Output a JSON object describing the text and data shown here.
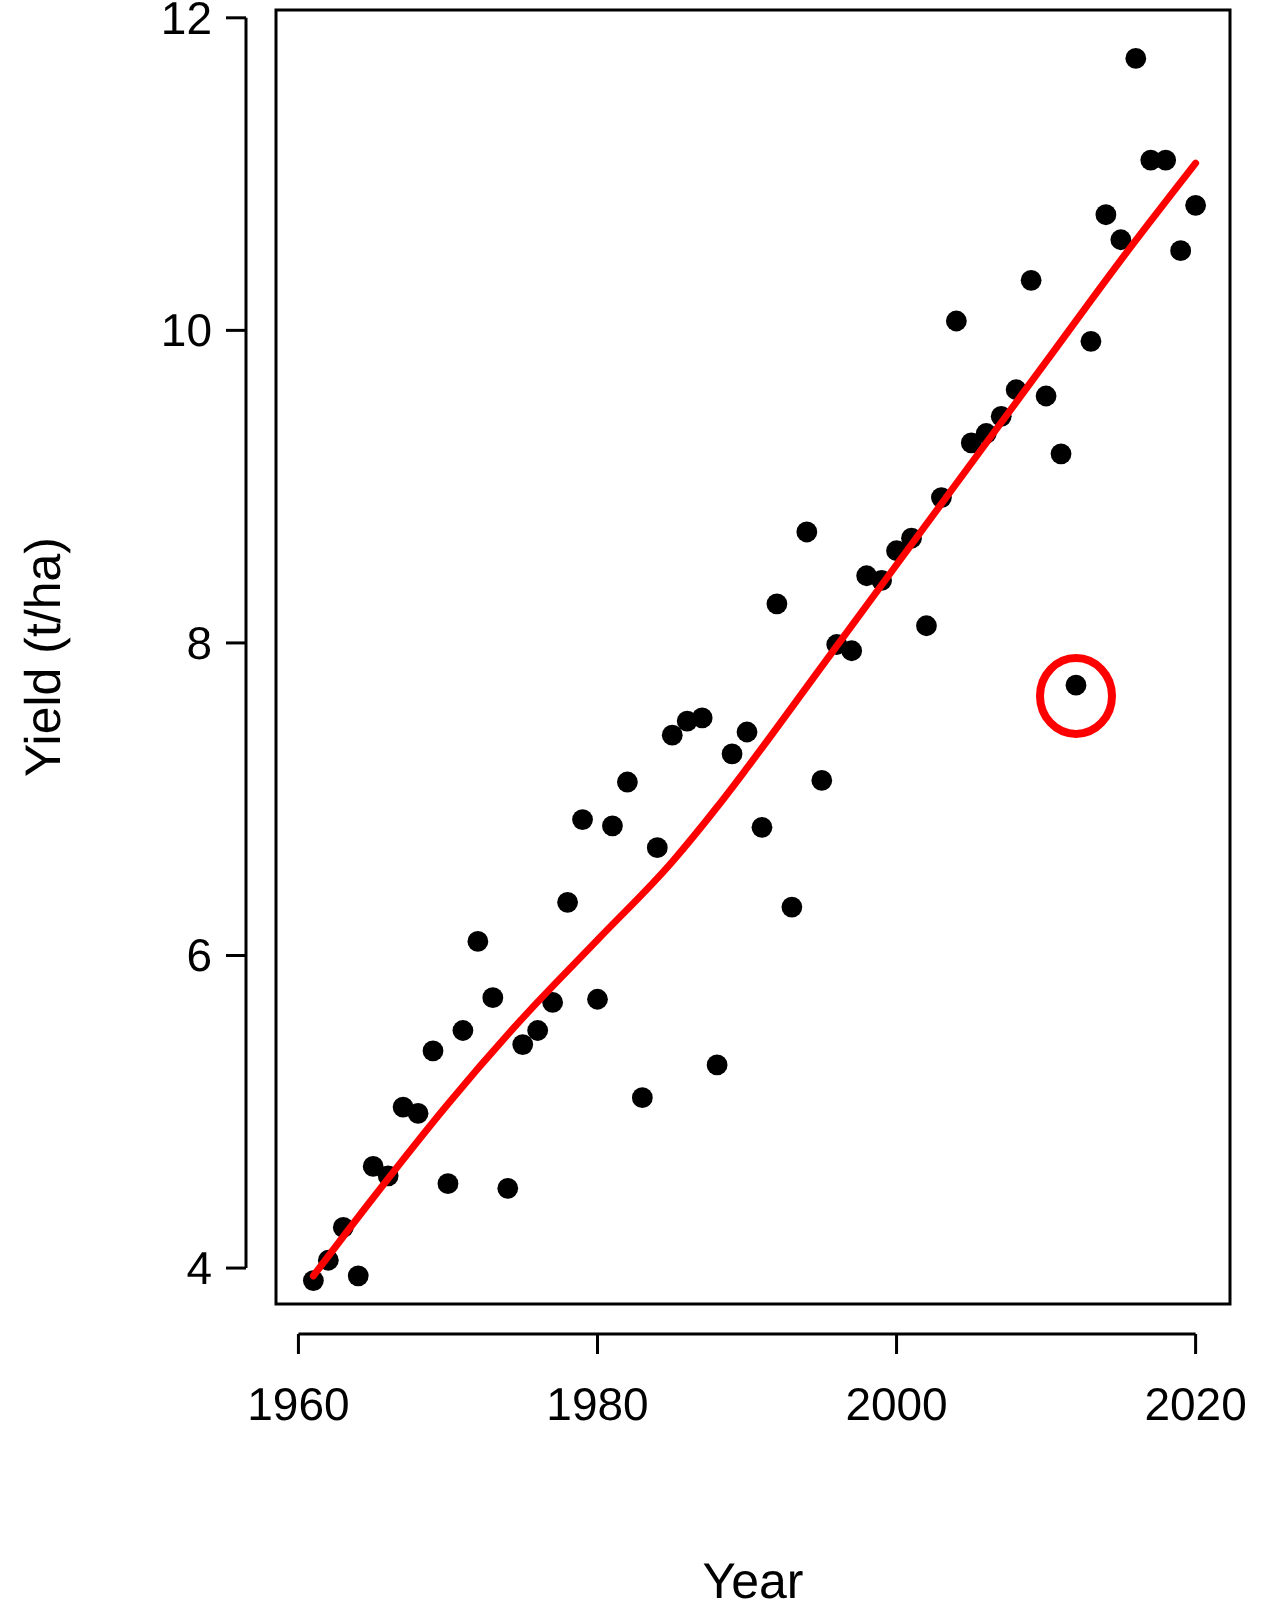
{
  "chart_data": {
    "type": "scatter",
    "xlabel": "Year",
    "ylabel": "Yield (t/ha)",
    "xlim": [
      1958.5,
      2022.3
    ],
    "ylim": [
      3.77,
      12.05
    ],
    "xticks": [
      1960,
      1980,
      2000,
      2020
    ],
    "yticks": [
      4,
      6,
      8,
      10,
      12
    ],
    "grid": false,
    "series": [
      {
        "color": "#000000",
        "marker": "circle",
        "x": [
          1961,
          1962,
          1963,
          1964,
          1965,
          1966,
          1967,
          1968,
          1969,
          1970,
          1971,
          1972,
          1973,
          1974,
          1975,
          1976,
          1977,
          1978,
          1979,
          1980,
          1981,
          1982,
          1983,
          1984,
          1985,
          1986,
          1987,
          1988,
          1989,
          1990,
          1991,
          1992,
          1993,
          1994,
          1995,
          1996,
          1997,
          1998,
          1999,
          2000,
          2001,
          2002,
          2003,
          2004,
          2005,
          2006,
          2007,
          2008,
          2009,
          2010,
          2011,
          2012,
          2013,
          2014,
          2015,
          2016,
          2017,
          2018,
          2019,
          2020
        ],
        "values": [
          3.92,
          4.05,
          4.26,
          3.95,
          4.65,
          4.59,
          5.03,
          4.99,
          5.39,
          4.54,
          5.52,
          6.09,
          5.73,
          4.51,
          5.43,
          5.52,
          5.7,
          6.34,
          6.87,
          5.72,
          6.83,
          7.11,
          5.09,
          6.69,
          7.41,
          7.5,
          7.52,
          5.3,
          7.29,
          7.43,
          6.82,
          8.25,
          6.31,
          8.71,
          7.12,
          7.99,
          7.95,
          8.43,
          8.4,
          8.59,
          8.67,
          8.11,
          8.93,
          10.06,
          9.28,
          9.34,
          9.45,
          9.62,
          10.32,
          9.58,
          9.21,
          7.73,
          9.93,
          10.74,
          10.58,
          11.74,
          11.09,
          11.09,
          10.51,
          10.8
        ]
      },
      {
        "type": "line",
        "color": "#ff0000",
        "marker": "none",
        "line_style": "solid",
        "x": [
          1961,
          1965,
          1970,
          1975,
          1980,
          1985,
          1988,
          1990,
          1995,
          2000,
          2005,
          2010,
          2015,
          2020
        ],
        "values": [
          3.95,
          4.45,
          5.05,
          5.6,
          6.1,
          6.6,
          6.95,
          7.2,
          7.85,
          8.5,
          9.15,
          9.8,
          10.45,
          11.07
        ]
      }
    ]
  }
}
